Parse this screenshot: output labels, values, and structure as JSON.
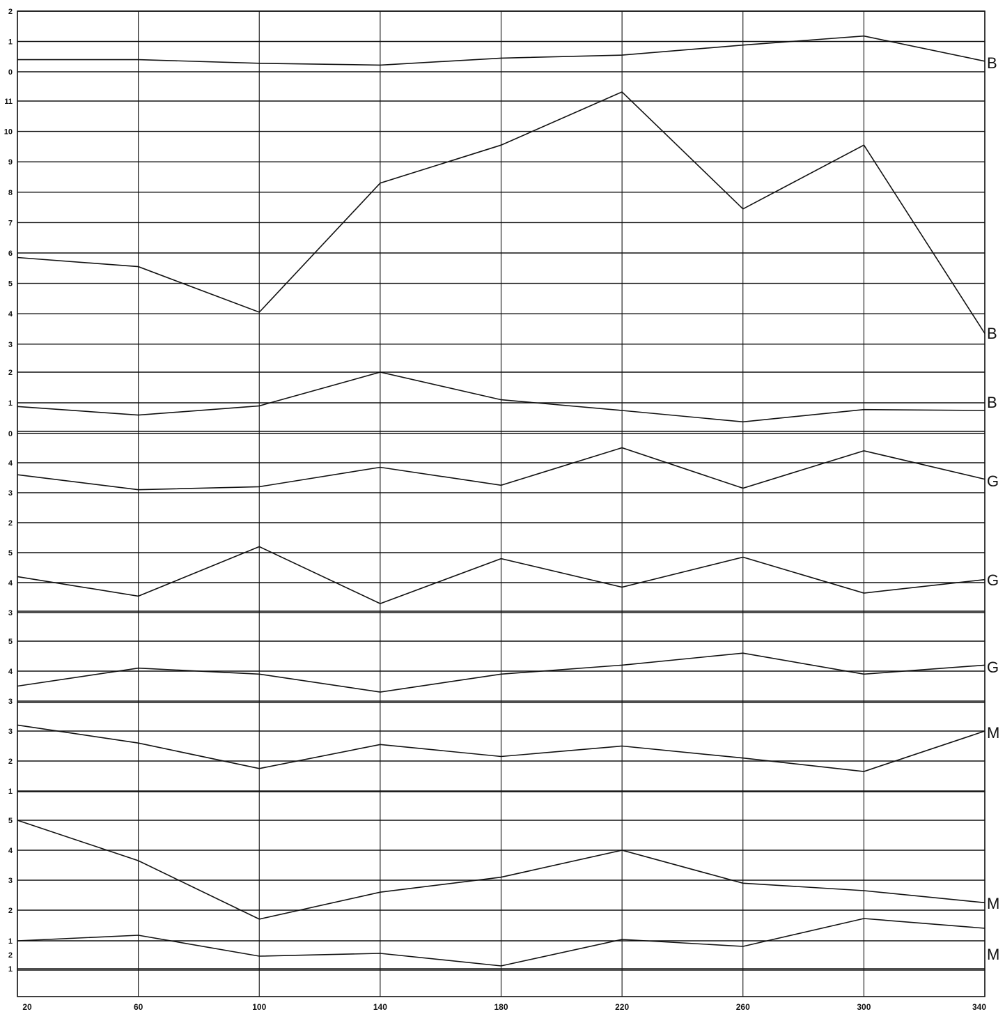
{
  "chart_data": {
    "type": "line",
    "x": [
      20,
      60,
      100,
      140,
      180,
      220,
      260,
      300,
      340
    ],
    "x_tick_labels": [
      "20",
      "60",
      "100",
      "140",
      "180",
      "220",
      "260",
      "300",
      "340"
    ],
    "xlim": [
      20,
      340
    ],
    "grid": true,
    "panels": [
      {
        "series_label": "B",
        "y_tick_labels": [
          "2",
          "1",
          "0"
        ],
        "ylim": [
          0,
          2
        ],
        "values": [
          0.4,
          0.4,
          0.28,
          0.22,
          0.45,
          0.55,
          0.88,
          1.18,
          0.35
        ]
      },
      {
        "series_label": "B",
        "y_tick_labels": [
          "11",
          "10",
          "9",
          "8",
          "7",
          "6",
          "5",
          "4",
          "3"
        ],
        "ylim": [
          3,
          11
        ],
        "values": [
          5.85,
          5.55,
          4.05,
          8.3,
          9.55,
          11.3,
          7.45,
          9.55,
          3.35
        ]
      },
      {
        "series_label": "B",
        "y_tick_labels": [
          "2",
          "1",
          "0"
        ],
        "ylim": [
          0,
          2
        ],
        "values": [
          0.88,
          0.6,
          0.9,
          2.0,
          1.1,
          0.75,
          0.38,
          0.78,
          0.75
        ]
      },
      {
        "series_label": "G",
        "y_tick_labels": [
          "4",
          "3",
          "2"
        ],
        "ylim": [
          2,
          4
        ],
        "values": [
          3.6,
          3.1,
          3.2,
          3.85,
          3.25,
          4.5,
          3.15,
          4.4,
          3.45
        ]
      },
      {
        "series_label": "G",
        "y_tick_labels": [
          "5",
          "4",
          "3"
        ],
        "ylim": [
          3,
          5
        ],
        "values": [
          4.2,
          3.55,
          5.2,
          3.3,
          4.8,
          3.85,
          4.85,
          3.65,
          4.1
        ]
      },
      {
        "series_label": "G",
        "y_tick_labels": [
          "5",
          "4",
          "3"
        ],
        "ylim": [
          3,
          5
        ],
        "values": [
          3.5,
          4.1,
          3.9,
          3.3,
          3.9,
          4.2,
          4.6,
          3.9,
          4.2
        ]
      },
      {
        "series_label": "M",
        "y_tick_labels": [
          "3",
          "2",
          "1"
        ],
        "ylim": [
          1,
          3
        ],
        "values": [
          3.2,
          2.6,
          1.75,
          2.55,
          2.15,
          2.5,
          2.1,
          1.65,
          3.0
        ]
      },
      {
        "series_label": "M",
        "y_tick_labels": [
          "5",
          "4",
          "3",
          "2"
        ],
        "ylim": [
          2,
          5
        ],
        "values": [
          5.0,
          3.65,
          1.7,
          2.6,
          3.1,
          4.0,
          2.9,
          2.65,
          2.25
        ]
      },
      {
        "series_label": "M",
        "y_tick_labels": [
          "1",
          "2",
          "1"
        ],
        "ylim": [
          1,
          2
        ],
        "values": [
          2.0,
          2.2,
          1.45,
          1.55,
          1.1,
          2.05,
          1.8,
          2.8,
          2.45
        ]
      }
    ]
  }
}
